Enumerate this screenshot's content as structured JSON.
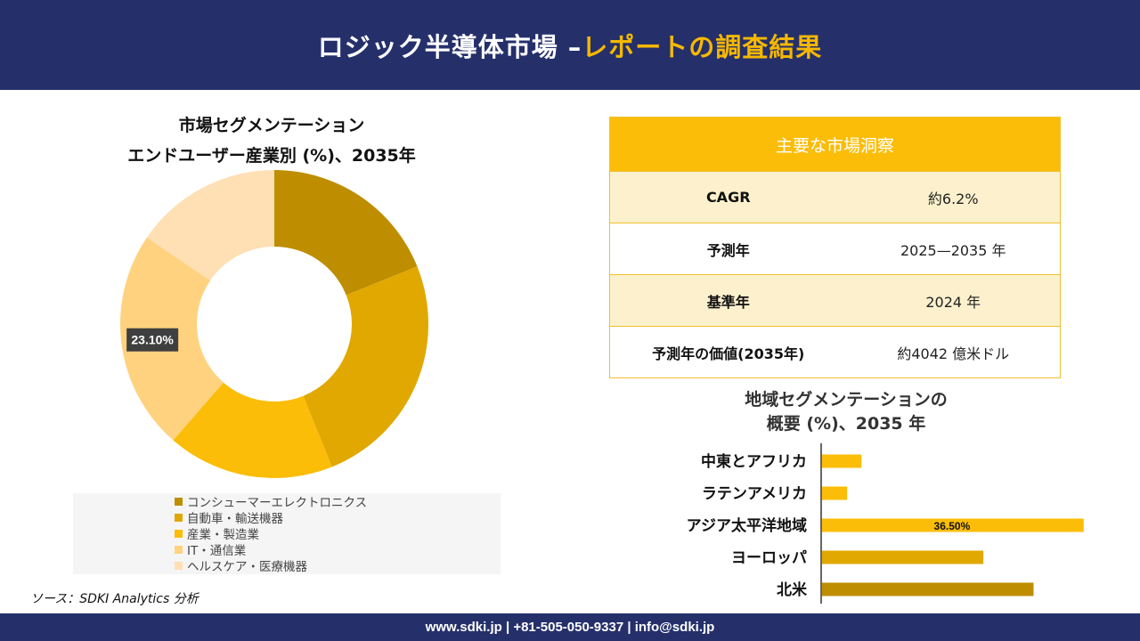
{
  "header": {
    "title_main": "ロジック半導体市場 –",
    "title_accent": "レポートの調査結果"
  },
  "donut": {
    "title_line1": "市場セグメンテーション",
    "title_line2": "エンドユーザー産業別 (%)、2035年"
  },
  "insights": {
    "heading": "主要な市場洞察",
    "rows": [
      {
        "label": "CAGR",
        "value": "約6.2%"
      },
      {
        "label": "予測年",
        "value": "2025—2035 年"
      },
      {
        "label": "基準年",
        "value": "2024 年"
      },
      {
        "label": "予測年の価値(2035年)",
        "value": "約4042 億米ドル"
      }
    ]
  },
  "regional": {
    "title_line1": "地域セグメンテーションの",
    "title_line2": "概要 (%)、2035 年"
  },
  "source": "ソース：SDKI Analytics 分析",
  "footer": {
    "contact": "www.sdki.jp | +81-505-050-9337 | info@sdki.jp"
  },
  "chart_data": [
    {
      "type": "pie",
      "variant": "donut",
      "categories": [
        "コンシューマーエレクトロニクス",
        "自動車・輸送機器",
        "産業・製造業",
        "IT・通信業",
        "ヘルスケア・医療機器"
      ],
      "values": [
        18.9,
        25.0,
        17.5,
        23.1,
        15.5
      ],
      "colors": [
        "#be8e00",
        "#e0a800",
        "#fbbd08",
        "#ffd27f",
        "#ffdfb4"
      ],
      "data_labels": [
        {
          "category": "IT・通信業",
          "text": "23.10%"
        }
      ],
      "legend_position": "bottom"
    },
    {
      "type": "bar",
      "orientation": "horizontal",
      "categories": [
        "中東とアフリカ",
        "ラテンアメリカ",
        "アジア太平洋地域",
        "ヨーロッパ",
        "北米"
      ],
      "values": [
        5.5,
        3.5,
        36.5,
        22.5,
        29.5
      ],
      "colors": [
        "#fbbd08",
        "#fbbd08",
        "#fbbd08",
        "#e0a800",
        "#be8e00"
      ],
      "data_labels": [
        {
          "category": "アジア太平洋地域",
          "text": "36.50%"
        }
      ],
      "xlim": [
        0,
        40
      ]
    }
  ]
}
